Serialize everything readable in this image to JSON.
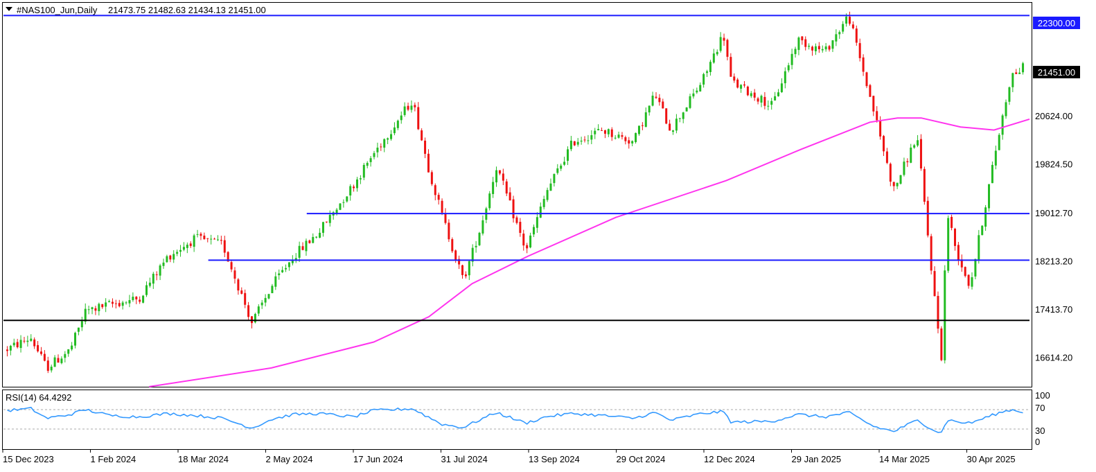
{
  "header": {
    "symbol": "#NAS100_Jun,Daily",
    "ohlc": "21473.75 21482.63 21434.13 21451.00"
  },
  "price_labels": {
    "resistance": "22300.00",
    "current": "21451.00"
  },
  "rsi": {
    "title": "RSI(14) 64.4292",
    "levels": [
      "100",
      "70",
      "30",
      "0"
    ]
  },
  "colors": {
    "bull": "#22bb22",
    "bear": "#ee1111",
    "ma": "#ff33ee",
    "levels": "#1a1aff",
    "support": "#000000",
    "rsi": "#3399ff"
  },
  "chart_data": {
    "type": "candlestick",
    "symbol": "#NAS100_Jun",
    "timeframe": "Daily",
    "x_range": [
      "2023-12-15",
      "2025-05-19"
    ],
    "ylim": [
      16150,
      22500
    ],
    "y_ticks": [
      22300.0,
      20624.0,
      19824.5,
      19012.7,
      18213.2,
      17413.7,
      16614.2
    ],
    "x_ticks": [
      "15 Dec 2023",
      "1 Feb 2024",
      "18 Mar 2024",
      "2 May 2024",
      "17 Jun 2024",
      "31 Jul 2024",
      "13 Sep 2024",
      "29 Oct 2024",
      "12 Dec 2024",
      "29 Jan 2025",
      "14 Mar 2025",
      "30 Apr 2025"
    ],
    "price_path": [
      [
        "2023-12-15",
        16750
      ],
      [
        "2023-12-28",
        16950
      ],
      [
        "2024-01-05",
        16450
      ],
      [
        "2024-01-17",
        16750
      ],
      [
        "2024-01-25",
        17400
      ],
      [
        "2024-02-06",
        17500
      ],
      [
        "2024-02-21",
        17600
      ],
      [
        "2024-03-07",
        18300
      ],
      [
        "2024-03-21",
        18600
      ],
      [
        "2024-04-04",
        18500
      ],
      [
        "2024-04-19",
        17200
      ],
      [
        "2024-04-29",
        17800
      ],
      [
        "2024-05-10",
        18300
      ],
      [
        "2024-05-23",
        18700
      ],
      [
        "2024-06-10",
        19500
      ],
      [
        "2024-06-20",
        20000
      ],
      [
        "2024-07-10",
        20900
      ],
      [
        "2024-07-18",
        19800
      ],
      [
        "2024-07-25",
        19000
      ],
      [
        "2024-08-05",
        17900
      ],
      [
        "2024-08-14",
        18800
      ],
      [
        "2024-08-22",
        19800
      ],
      [
        "2024-09-06",
        18400
      ],
      [
        "2024-09-17",
        19400
      ],
      [
        "2024-09-30",
        20200
      ],
      [
        "2024-10-15",
        20400
      ],
      [
        "2024-10-31",
        20200
      ],
      [
        "2024-11-11",
        21000
      ],
      [
        "2024-11-19",
        20400
      ],
      [
        "2024-12-05",
        21200
      ],
      [
        "2024-12-16",
        22000
      ],
      [
        "2024-12-20",
        21200
      ],
      [
        "2025-01-10",
        20800
      ],
      [
        "2025-01-23",
        21900
      ],
      [
        "2025-02-06",
        21700
      ],
      [
        "2025-02-18",
        22300
      ],
      [
        "2025-03-03",
        20700
      ],
      [
        "2025-03-13",
        19400
      ],
      [
        "2025-03-25",
        20300
      ],
      [
        "2025-04-04",
        17300
      ],
      [
        "2025-04-07",
        16500
      ],
      [
        "2025-04-09",
        19100
      ],
      [
        "2025-04-14",
        18400
      ],
      [
        "2025-04-21",
        17800
      ],
      [
        "2025-05-05",
        20200
      ],
      [
        "2025-05-12",
        21300
      ],
      [
        "2025-05-19",
        21451
      ]
    ],
    "series": [
      {
        "name": "",
        "kind": "moving-average",
        "points": [
          [
            "2024-02-27",
            16140
          ],
          [
            "2024-04-29",
            16450
          ],
          [
            "2024-06-20",
            16880
          ],
          [
            "2024-07-18",
            17300
          ],
          [
            "2024-08-09",
            17850
          ],
          [
            "2024-09-06",
            18300
          ],
          [
            "2024-10-21",
            18950
          ],
          [
            "2024-12-16",
            19560
          ],
          [
            "2025-01-23",
            20080
          ],
          [
            "2025-02-27",
            20530
          ],
          [
            "2025-03-13",
            20600
          ],
          [
            "2025-03-25",
            20600
          ],
          [
            "2025-04-14",
            20450
          ],
          [
            "2025-05-01",
            20400
          ],
          [
            "2025-05-19",
            20580
          ]
        ]
      }
    ],
    "horizontal_lines": [
      {
        "kind": "resistance",
        "value": 22300.0,
        "from": "2023-12-15",
        "to": "2025-05-19"
      },
      {
        "kind": "level",
        "value": 19012.7,
        "from": "2024-05-17",
        "to": "2025-05-19"
      },
      {
        "kind": "level",
        "value": 18240,
        "from": "2024-03-28",
        "to": "2025-05-19"
      },
      {
        "kind": "support",
        "value": 17240,
        "from": "2023-12-15",
        "to": "2025-05-19"
      }
    ],
    "rsi": {
      "period": 14,
      "last": 64.4292,
      "ylim": [
        0,
        100
      ],
      "levels": [
        30,
        70
      ],
      "points": [
        [
          "2023-12-15",
          68
        ],
        [
          "2023-12-28",
          72
        ],
        [
          "2024-01-05",
          52
        ],
        [
          "2024-01-17",
          60
        ],
        [
          "2024-01-25",
          70
        ],
        [
          "2024-02-06",
          58
        ],
        [
          "2024-02-21",
          55
        ],
        [
          "2024-03-07",
          62
        ],
        [
          "2024-03-21",
          58
        ],
        [
          "2024-04-04",
          52
        ],
        [
          "2024-04-19",
          32
        ],
        [
          "2024-04-29",
          50
        ],
        [
          "2024-05-10",
          60
        ],
        [
          "2024-05-23",
          62
        ],
        [
          "2024-06-10",
          55
        ],
        [
          "2024-06-20",
          68
        ],
        [
          "2024-07-10",
          72
        ],
        [
          "2024-07-18",
          55
        ],
        [
          "2024-07-25",
          40
        ],
        [
          "2024-08-05",
          33
        ],
        [
          "2024-08-14",
          50
        ],
        [
          "2024-08-22",
          64
        ],
        [
          "2024-09-06",
          42
        ],
        [
          "2024-09-17",
          56
        ],
        [
          "2024-09-30",
          62
        ],
        [
          "2024-10-15",
          58
        ],
        [
          "2024-10-31",
          52
        ],
        [
          "2024-11-11",
          64
        ],
        [
          "2024-11-19",
          48
        ],
        [
          "2024-12-05",
          62
        ],
        [
          "2024-12-16",
          66
        ],
        [
          "2024-12-20",
          44
        ],
        [
          "2025-01-10",
          46
        ],
        [
          "2025-01-23",
          60
        ],
        [
          "2025-02-06",
          55
        ],
        [
          "2025-02-18",
          64
        ],
        [
          "2025-03-03",
          35
        ],
        [
          "2025-03-13",
          25
        ],
        [
          "2025-03-25",
          48
        ],
        [
          "2025-04-04",
          25
        ],
        [
          "2025-04-07",
          22
        ],
        [
          "2025-04-09",
          50
        ],
        [
          "2025-04-14",
          45
        ],
        [
          "2025-04-21",
          42
        ],
        [
          "2025-05-05",
          62
        ],
        [
          "2025-05-12",
          70
        ],
        [
          "2025-05-19",
          64.4
        ]
      ]
    }
  }
}
